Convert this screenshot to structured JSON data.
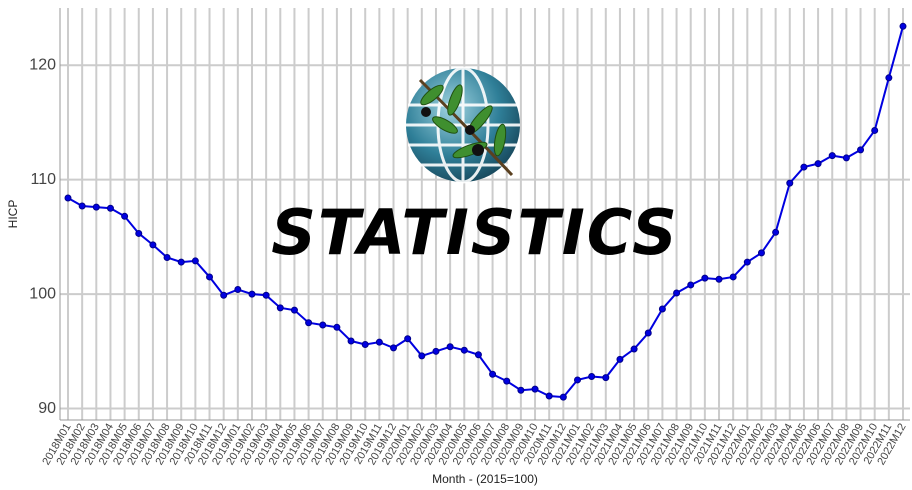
{
  "chart_data": {
    "type": "line",
    "watermark": "STATISTICS",
    "x_label": "Month - (2015=100)",
    "y_label": "HICP",
    "categories": [
      "2018M01",
      "2018M02",
      "2018M03",
      "2018M04",
      "2018M05",
      "2018M06",
      "2018M07",
      "2018M08",
      "2018M09",
      "2018M10",
      "2018M11",
      "2018M12",
      "2019M01",
      "2019M02",
      "2019M03",
      "2019M04",
      "2019M05",
      "2019M06",
      "2019M07",
      "2019M08",
      "2019M09",
      "2019M10",
      "2019M11",
      "2019M12",
      "2020M01",
      "2020M02",
      "2020M03",
      "2020M04",
      "2020M05",
      "2020M06",
      "2020M07",
      "2020M08",
      "2020M09",
      "2020M10",
      "2020M11",
      "2020M12",
      "2021M01",
      "2021M02",
      "2021M03",
      "2021M04",
      "2021M05",
      "2021M06",
      "2021M07",
      "2021M08",
      "2021M09",
      "2021M10",
      "2021M11",
      "2021M12",
      "2022M01",
      "2022M02",
      "2022M03",
      "2022M04",
      "2022M05",
      "2022M06",
      "2022M07",
      "2022M08",
      "2022M09",
      "2022M10",
      "2022M11",
      "2022M12"
    ],
    "values": [
      108.4,
      107.7,
      107.6,
      107.5,
      106.8,
      105.3,
      104.3,
      103.2,
      102.8,
      102.9,
      101.5,
      99.9,
      100.4,
      100.0,
      99.9,
      98.8,
      98.6,
      97.5,
      97.3,
      97.1,
      95.9,
      95.6,
      95.8,
      95.3,
      96.1,
      94.6,
      95.0,
      95.4,
      95.1,
      94.7,
      93.0,
      92.4,
      91.6,
      91.7,
      91.1,
      91.0,
      92.5,
      92.8,
      92.7,
      94.3,
      95.2,
      96.6,
      98.7,
      100.1,
      100.8,
      101.4,
      101.3,
      101.5,
      102.8,
      103.6,
      105.4,
      109.7,
      111.1,
      111.4,
      112.1,
      111.9,
      112.6,
      114.3,
      118.9,
      123.4
    ],
    "color": "#0000e0",
    "ylim": [
      89,
      125
    ],
    "yticks": [
      90,
      100,
      110,
      120
    ],
    "grid": true
  }
}
